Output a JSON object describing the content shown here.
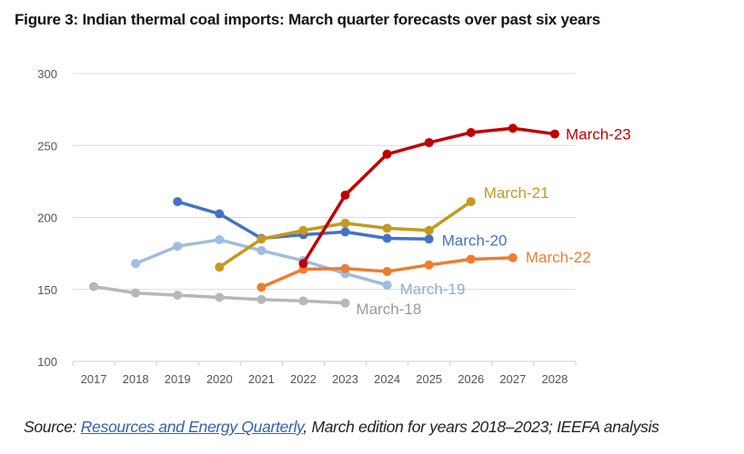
{
  "title": "Figure 3: Indian thermal coal imports: March quarter forecasts over past six years",
  "source": {
    "prefix": "Source: ",
    "link_text": "Resources and Energy Quarterly",
    "suffix": ", March edition for years 2018–2023; IEEFA analysis"
  },
  "chart_data": {
    "type": "line",
    "title": "Figure 3: Indian thermal coal imports: March quarter forecasts over past six years",
    "xlabel": "",
    "ylabel": "",
    "categories": [
      "2017",
      "2018",
      "2019",
      "2020",
      "2021",
      "2022",
      "2023",
      "2024",
      "2025",
      "2026",
      "2027",
      "2028"
    ],
    "ylim": [
      100,
      300
    ],
    "yticks": [
      100,
      150,
      200,
      250,
      300
    ],
    "grid": true,
    "legend": "inline-end-labels",
    "series": [
      {
        "name": "March-18",
        "color": "#b7b7b7",
        "label_color": "#9a9a9a",
        "values": [
          152,
          147.5,
          146,
          144.5,
          143,
          142,
          140.5,
          null,
          null,
          null,
          null,
          null
        ]
      },
      {
        "name": "March-19",
        "color": "#9dbde3",
        "label_color": "#8fadd4",
        "values": [
          null,
          168,
          180,
          184.5,
          177,
          170,
          161,
          153,
          null,
          null,
          null,
          null
        ]
      },
      {
        "name": "March-20",
        "color": "#4472c4",
        "label_color": "#4472c4",
        "values": [
          null,
          null,
          211,
          202.5,
          185.5,
          188,
          190,
          185.5,
          185,
          null,
          null,
          null
        ]
      },
      {
        "name": "March-21",
        "color": "#c49a1e",
        "label_color": "#c49a1e",
        "values": [
          null,
          null,
          null,
          165.5,
          185,
          191,
          196,
          192.5,
          191,
          211,
          null,
          null
        ]
      },
      {
        "name": "March-22",
        "color": "#ed7d31",
        "label_color": "#ed7d31",
        "values": [
          null,
          null,
          null,
          null,
          151.5,
          164,
          164.5,
          162.5,
          167,
          171,
          172,
          null
        ]
      },
      {
        "name": "March-23",
        "color": "#c00000",
        "label_color": "#c00000",
        "values": [
          null,
          null,
          null,
          null,
          null,
          168,
          215.5,
          244,
          252,
          259,
          262,
          258
        ]
      }
    ]
  }
}
